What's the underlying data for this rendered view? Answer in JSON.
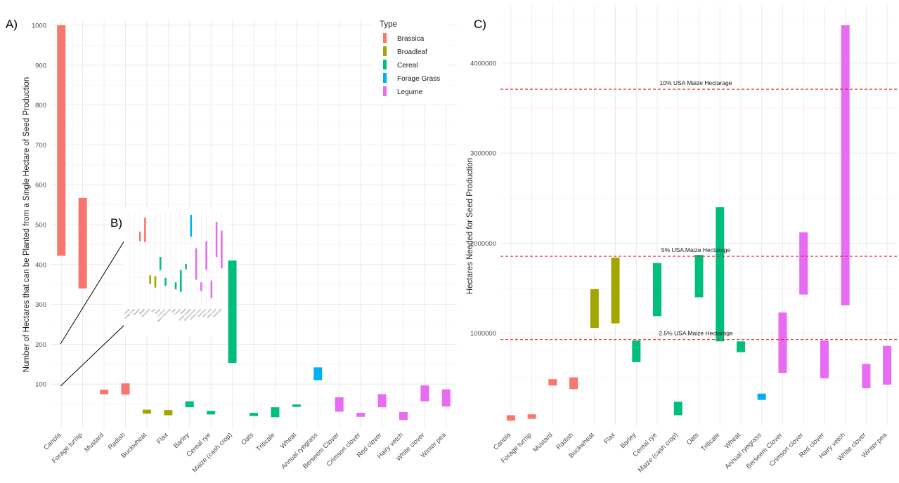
{
  "panels": {
    "a_label": "A)",
    "b_label": "B)",
    "c_label": "C)"
  },
  "legend": {
    "title": "Type",
    "items": [
      {
        "label": "Brassica",
        "color": "#F8766D"
      },
      {
        "label": "Broadleaf",
        "color": "#A3A500"
      },
      {
        "label": "Cereal",
        "color": "#00BF7D"
      },
      {
        "label": "Forage Grass",
        "color": "#00B0F6"
      },
      {
        "label": "Legume",
        "color": "#E76BF3"
      }
    ]
  },
  "chart_data": [
    {
      "panel": "A",
      "type": "bar",
      "ylabel": "Number of Hectares that can be Planted from a Single Hectare of Seed Production",
      "xlabel": "",
      "ylim": [
        0,
        1000
      ],
      "yticks": [
        100,
        200,
        300,
        400,
        500,
        600,
        700,
        800,
        900,
        1000
      ],
      "categories": [
        "Canola",
        "Forage turnip",
        "Mustard",
        "Radish",
        "Buckwheat",
        "Flax",
        "Barley",
        "Cereal rye",
        "Maize (cash crop)",
        "Oats",
        "Triticale",
        "Wheat",
        "Annual ryegrass",
        "Berseem Clover",
        "Crimson clover",
        "Red clover",
        "Hairy vetch",
        "White clover",
        "Winter pea"
      ],
      "types": [
        "Brassica",
        "Brassica",
        "Brassica",
        "Brassica",
        "Broadleaf",
        "Broadleaf",
        "Cereal",
        "Cereal",
        "Cereal",
        "Cereal",
        "Cereal",
        "Cereal",
        "Forage Grass",
        "Legume",
        "Legume",
        "Legume",
        "Legume",
        "Legume",
        "Legume"
      ],
      "ranges": [
        [
          422,
          1000
        ],
        [
          340,
          567
        ],
        [
          75,
          86
        ],
        [
          74,
          102
        ],
        [
          26,
          36
        ],
        [
          22,
          35
        ],
        [
          42,
          57
        ],
        [
          24,
          33
        ],
        [
          153,
          410
        ],
        [
          20,
          28
        ],
        [
          17,
          42
        ],
        [
          43,
          49
        ],
        [
          110,
          142
        ],
        [
          31,
          67
        ],
        [
          18,
          28
        ],
        [
          42,
          75
        ],
        [
          10,
          30
        ],
        [
          57,
          97
        ],
        [
          44,
          87
        ]
      ]
    },
    {
      "panel": "B",
      "type": "bar",
      "categories": [
        "Canola",
        "Forage turnip",
        "Mustard",
        "Radish",
        "Buckwheat",
        "Flax",
        "Barley",
        "Cereal rye",
        "Maize (cash crop)",
        "Oats",
        "Triticale",
        "Wheat",
        "Annual ryegrass",
        "Berseem Clover",
        "Crimson clover",
        "Red clover",
        "Hairy vetch",
        "White clover",
        "Winter pea"
      ]
    },
    {
      "panel": "C",
      "type": "bar",
      "ylabel": "Hectares Needed for Seed Production",
      "xlabel": "",
      "ylim": [
        0,
        4420000
      ],
      "yticks": [
        1000000,
        2000000,
        3000000,
        4000000
      ],
      "categories": [
        "Canola",
        "Forage turnip",
        "Mustard",
        "Radish",
        "Buckwheat",
        "Flax",
        "Barley",
        "Cereal rye",
        "Maize (cash crop)",
        "Oats",
        "Triticale",
        "Wheat",
        "Annual ryegrass",
        "Berseem Clover",
        "Crimson clover",
        "Red clover",
        "Hairy vetch",
        "White clover",
        "Winter pea"
      ],
      "types": [
        "Brassica",
        "Brassica",
        "Brassica",
        "Brassica",
        "Broadleaf",
        "Broadleaf",
        "Cereal",
        "Cereal",
        "Cereal",
        "Cereal",
        "Cereal",
        "Cereal",
        "Forage Grass",
        "Legume",
        "Legume",
        "Legume",
        "Legume",
        "Legume",
        "Legume"
      ],
      "ranges": [
        [
          30000,
          90000
        ],
        [
          50000,
          100000
        ],
        [
          420000,
          490000
        ],
        [
          380000,
          510000
        ],
        [
          1060000,
          1490000
        ],
        [
          1110000,
          1840000
        ],
        [
          680000,
          920000
        ],
        [
          1190000,
          1780000
        ],
        [
          90000,
          240000
        ],
        [
          1400000,
          1870000
        ],
        [
          910000,
          2400000
        ],
        [
          790000,
          910000
        ],
        [
          260000,
          330000
        ],
        [
          560000,
          1230000
        ],
        [
          1430000,
          2120000
        ],
        [
          500000,
          920000
        ],
        [
          1310000,
          4420000
        ],
        [
          390000,
          660000
        ],
        [
          430000,
          860000
        ]
      ],
      "reference_lines": [
        {
          "label": "10% USA Maize Hectarage",
          "value": 3710000
        },
        {
          "label": "5% USA Maize Hectarage",
          "value": 1855000
        },
        {
          "label": "2.5% USA Maize Hectarage",
          "value": 930000
        }
      ]
    }
  ]
}
